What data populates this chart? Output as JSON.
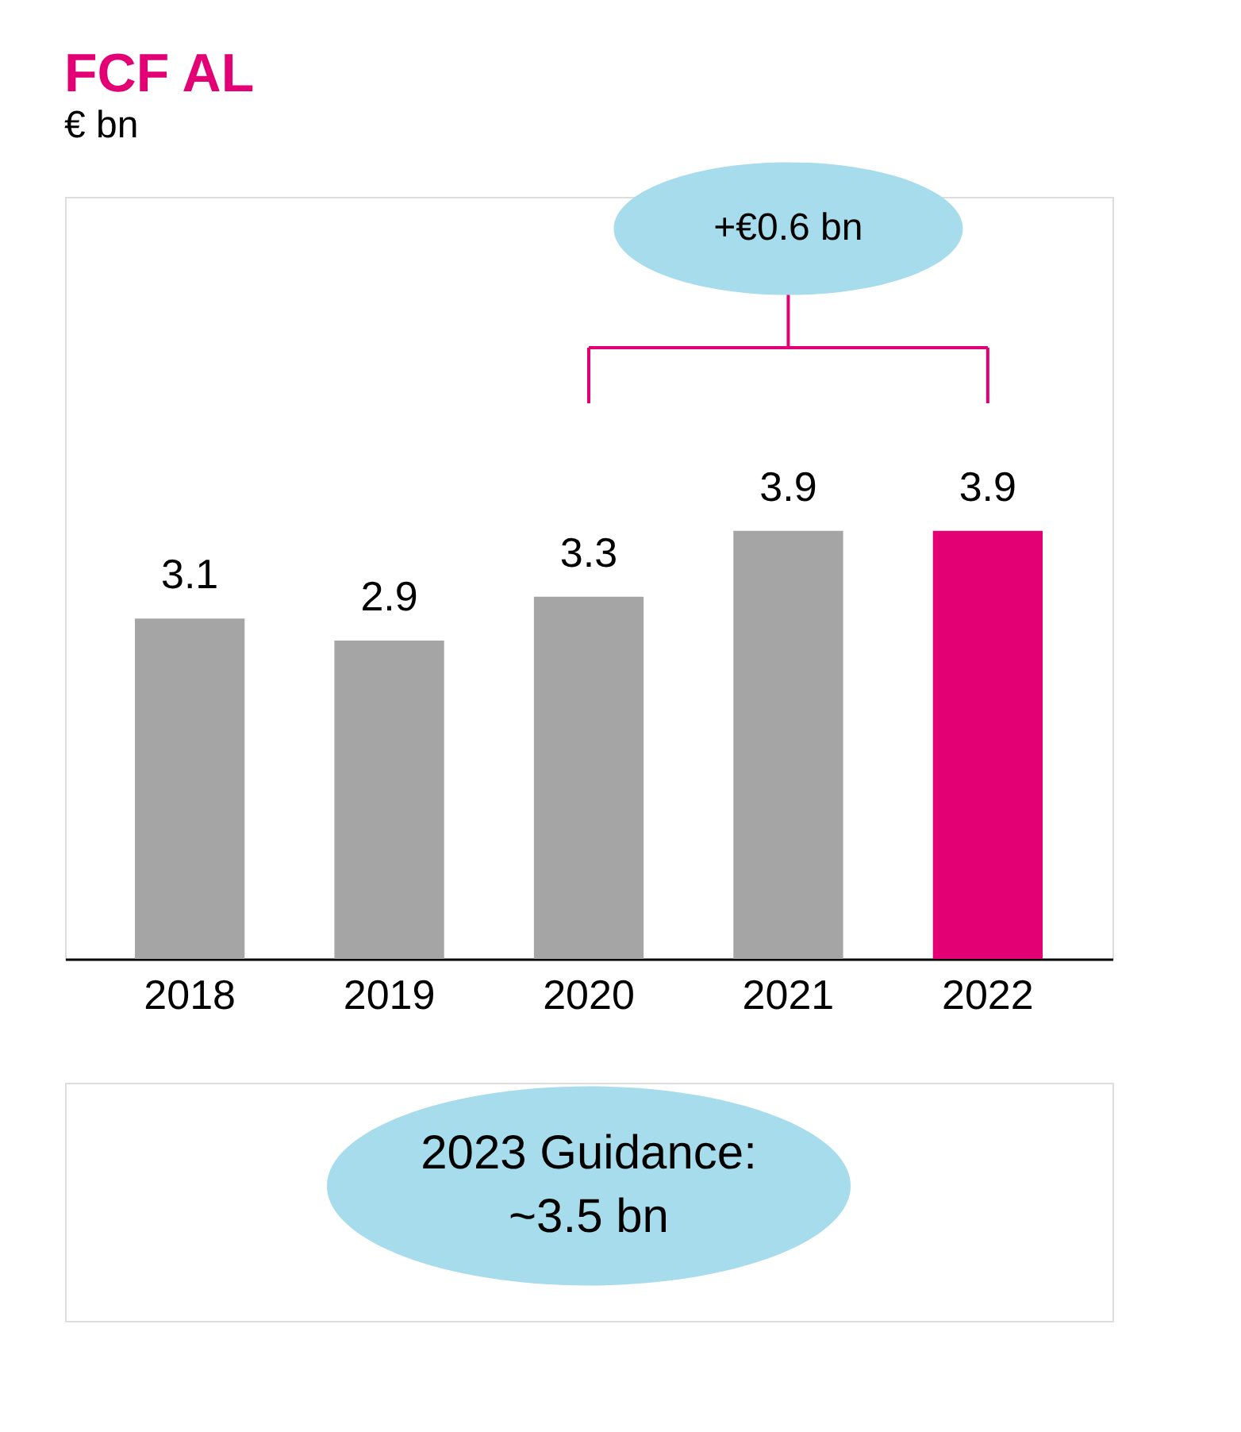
{
  "chart_data": {
    "type": "bar",
    "title": "FCF AL",
    "subtitle": "€ bn",
    "categories": [
      "2018",
      "2019",
      "2020",
      "2021",
      "2022"
    ],
    "values": [
      3.1,
      2.9,
      3.3,
      3.9,
      3.9
    ],
    "colors": [
      "#a5a5a5",
      "#a5a5a5",
      "#a5a5a5",
      "#a5a5a5",
      "#e20074"
    ],
    "data_labels": true,
    "annotations": [
      "+€0.6 bn",
      "2023 Guidance: ~3.5 bn"
    ]
  }
}
